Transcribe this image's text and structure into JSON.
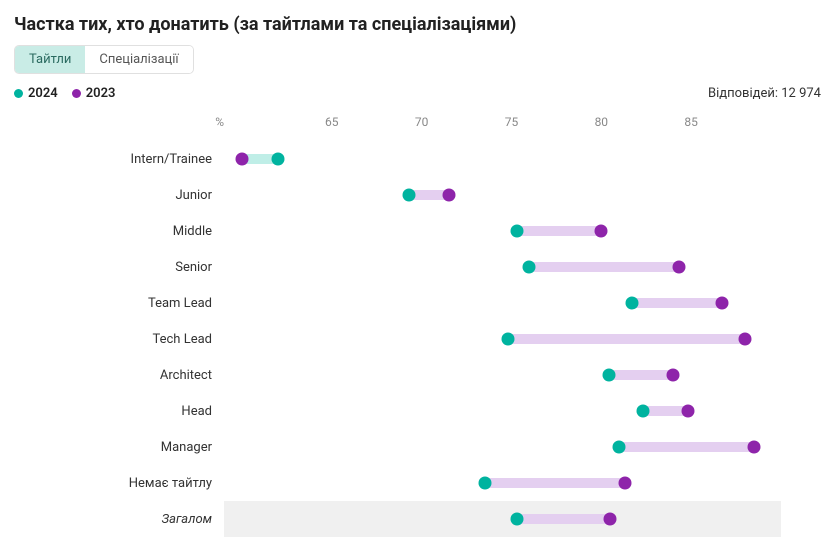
{
  "title": "Частка тих, хто донатить (за тайтлами та спеціалізаціями)",
  "tabs": {
    "titles": "Тайтли",
    "specs": "Спеціалізації",
    "active": "titles"
  },
  "legend": {
    "s2024": {
      "label": "2024",
      "color": "#00b39f"
    },
    "s2023": {
      "label": "2023",
      "color": "#8e24aa"
    }
  },
  "responses": {
    "prefix": "Відповідей:",
    "value": "12 974"
  },
  "chart": {
    "type": "dumbbell",
    "xmin": 59,
    "xmax": 90,
    "ticks": [
      {
        "v": 59,
        "label": "%",
        "pct": true
      },
      {
        "v": 65,
        "label": "65"
      },
      {
        "v": 70,
        "label": "70"
      },
      {
        "v": 75,
        "label": "75"
      },
      {
        "v": 80,
        "label": "80"
      },
      {
        "v": 85,
        "label": "85"
      }
    ],
    "bar_color_teal": "#bfeee7",
    "bar_color_purple": "#e4cff0",
    "rows": [
      {
        "label": "Intern/Trainee",
        "v2024": 62.0,
        "v2023": 60.0,
        "total": false
      },
      {
        "label": "Junior",
        "v2024": 69.3,
        "v2023": 71.5,
        "total": false
      },
      {
        "label": "Middle",
        "v2024": 75.3,
        "v2023": 80.0,
        "total": false
      },
      {
        "label": "Senior",
        "v2024": 76.0,
        "v2023": 84.3,
        "total": false
      },
      {
        "label": "Team Lead",
        "v2024": 81.7,
        "v2023": 86.7,
        "total": false
      },
      {
        "label": "Tech Lead",
        "v2024": 74.8,
        "v2023": 88.0,
        "total": false
      },
      {
        "label": "Architect",
        "v2024": 80.4,
        "v2023": 84.0,
        "total": false
      },
      {
        "label": "Head",
        "v2024": 82.3,
        "v2023": 84.8,
        "total": false
      },
      {
        "label": "Manager",
        "v2024": 81.0,
        "v2023": 88.5,
        "total": false
      },
      {
        "label": "Немає тайтлу",
        "v2024": 73.5,
        "v2023": 81.3,
        "total": false
      },
      {
        "label": "Загалом",
        "v2024": 75.3,
        "v2023": 80.5,
        "total": true
      }
    ]
  }
}
